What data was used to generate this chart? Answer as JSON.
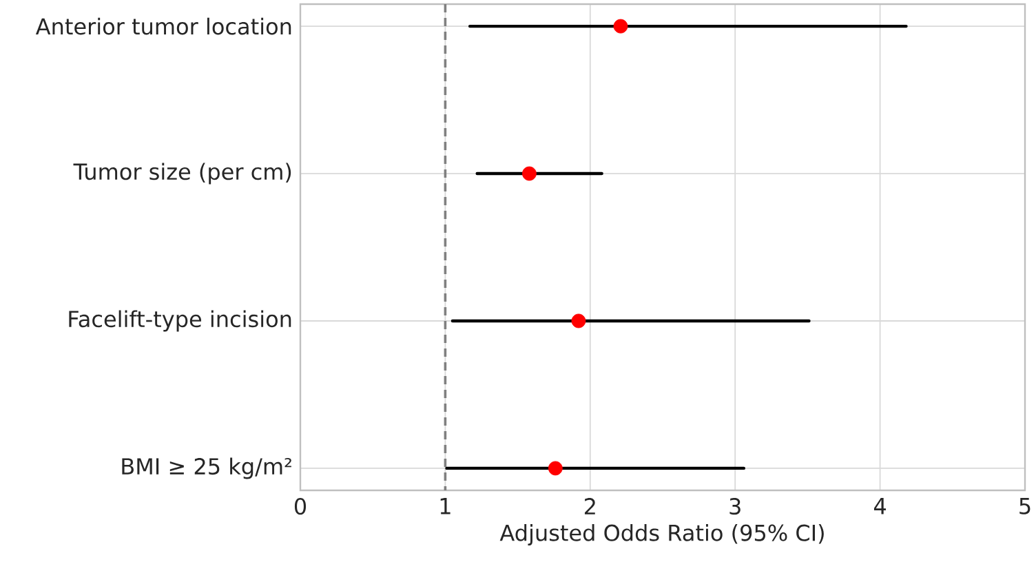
{
  "chart_data": {
    "type": "scatter",
    "orientation": "horizontal",
    "xlabel": "Adjusted Odds Ratio (95% CI)",
    "categories": [
      "Anterior tumor location",
      "Tumor size (per cm)",
      "Facelift-type incision",
      "BMI ≥ 25 kg/m²"
    ],
    "values": [
      2.21,
      1.58,
      1.92,
      1.76
    ],
    "errors": [
      [
        1.17,
        4.18
      ],
      [
        1.22,
        2.08
      ],
      [
        1.05,
        3.51
      ],
      [
        1.01,
        3.06
      ]
    ],
    "color": "#ff0000",
    "xlim": [
      0,
      5
    ],
    "xticks": [
      0,
      1,
      2,
      3,
      4,
      5
    ],
    "grid": true,
    "ref_lines": [
      {
        "axis": "x",
        "value": 1,
        "color": "#808080",
        "line_style": "dashed"
      }
    ]
  }
}
